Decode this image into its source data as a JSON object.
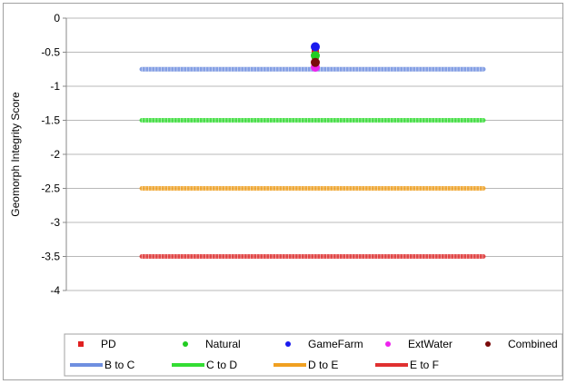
{
  "chart_data": {
    "type": "scatter",
    "title": "",
    "xlabel": "",
    "ylabel": "Geomorph Integrity Score",
    "ylim": [
      -4,
      0
    ],
    "yticks": [
      0,
      -0.5,
      -1,
      -1.5,
      -2,
      -2.5,
      -3,
      -3.5,
      -4
    ],
    "ytick_labels": [
      "0",
      "-0.5",
      "-1",
      "-1.5",
      "-2",
      "-2.5",
      "-3",
      "-3.5",
      "-4"
    ],
    "grid": true,
    "legend_position": "bottom",
    "points": [
      {
        "name": "PD",
        "marker": "square",
        "color": "#e02020",
        "y": -0.52
      },
      {
        "name": "Natural",
        "marker": "circle",
        "color": "#22cc22",
        "y": -0.55
      },
      {
        "name": "GameFarm",
        "marker": "circle",
        "color": "#1a1aee",
        "y": -0.42
      },
      {
        "name": "ExtWater",
        "marker": "circle",
        "color": "#ee22ee",
        "y": -0.72
      },
      {
        "name": "Combined",
        "marker": "circle",
        "color": "#7a0a0a",
        "y": -0.65
      }
    ],
    "thresholds": [
      {
        "name": "B to C",
        "color": "#6f8fe0",
        "y": -0.75
      },
      {
        "name": "C to D",
        "color": "#33dd33",
        "y": -1.5
      },
      {
        "name": "D to E",
        "color": "#f0a020",
        "y": -2.5
      },
      {
        "name": "E to F",
        "color": "#e03030",
        "y": -3.5
      }
    ]
  }
}
